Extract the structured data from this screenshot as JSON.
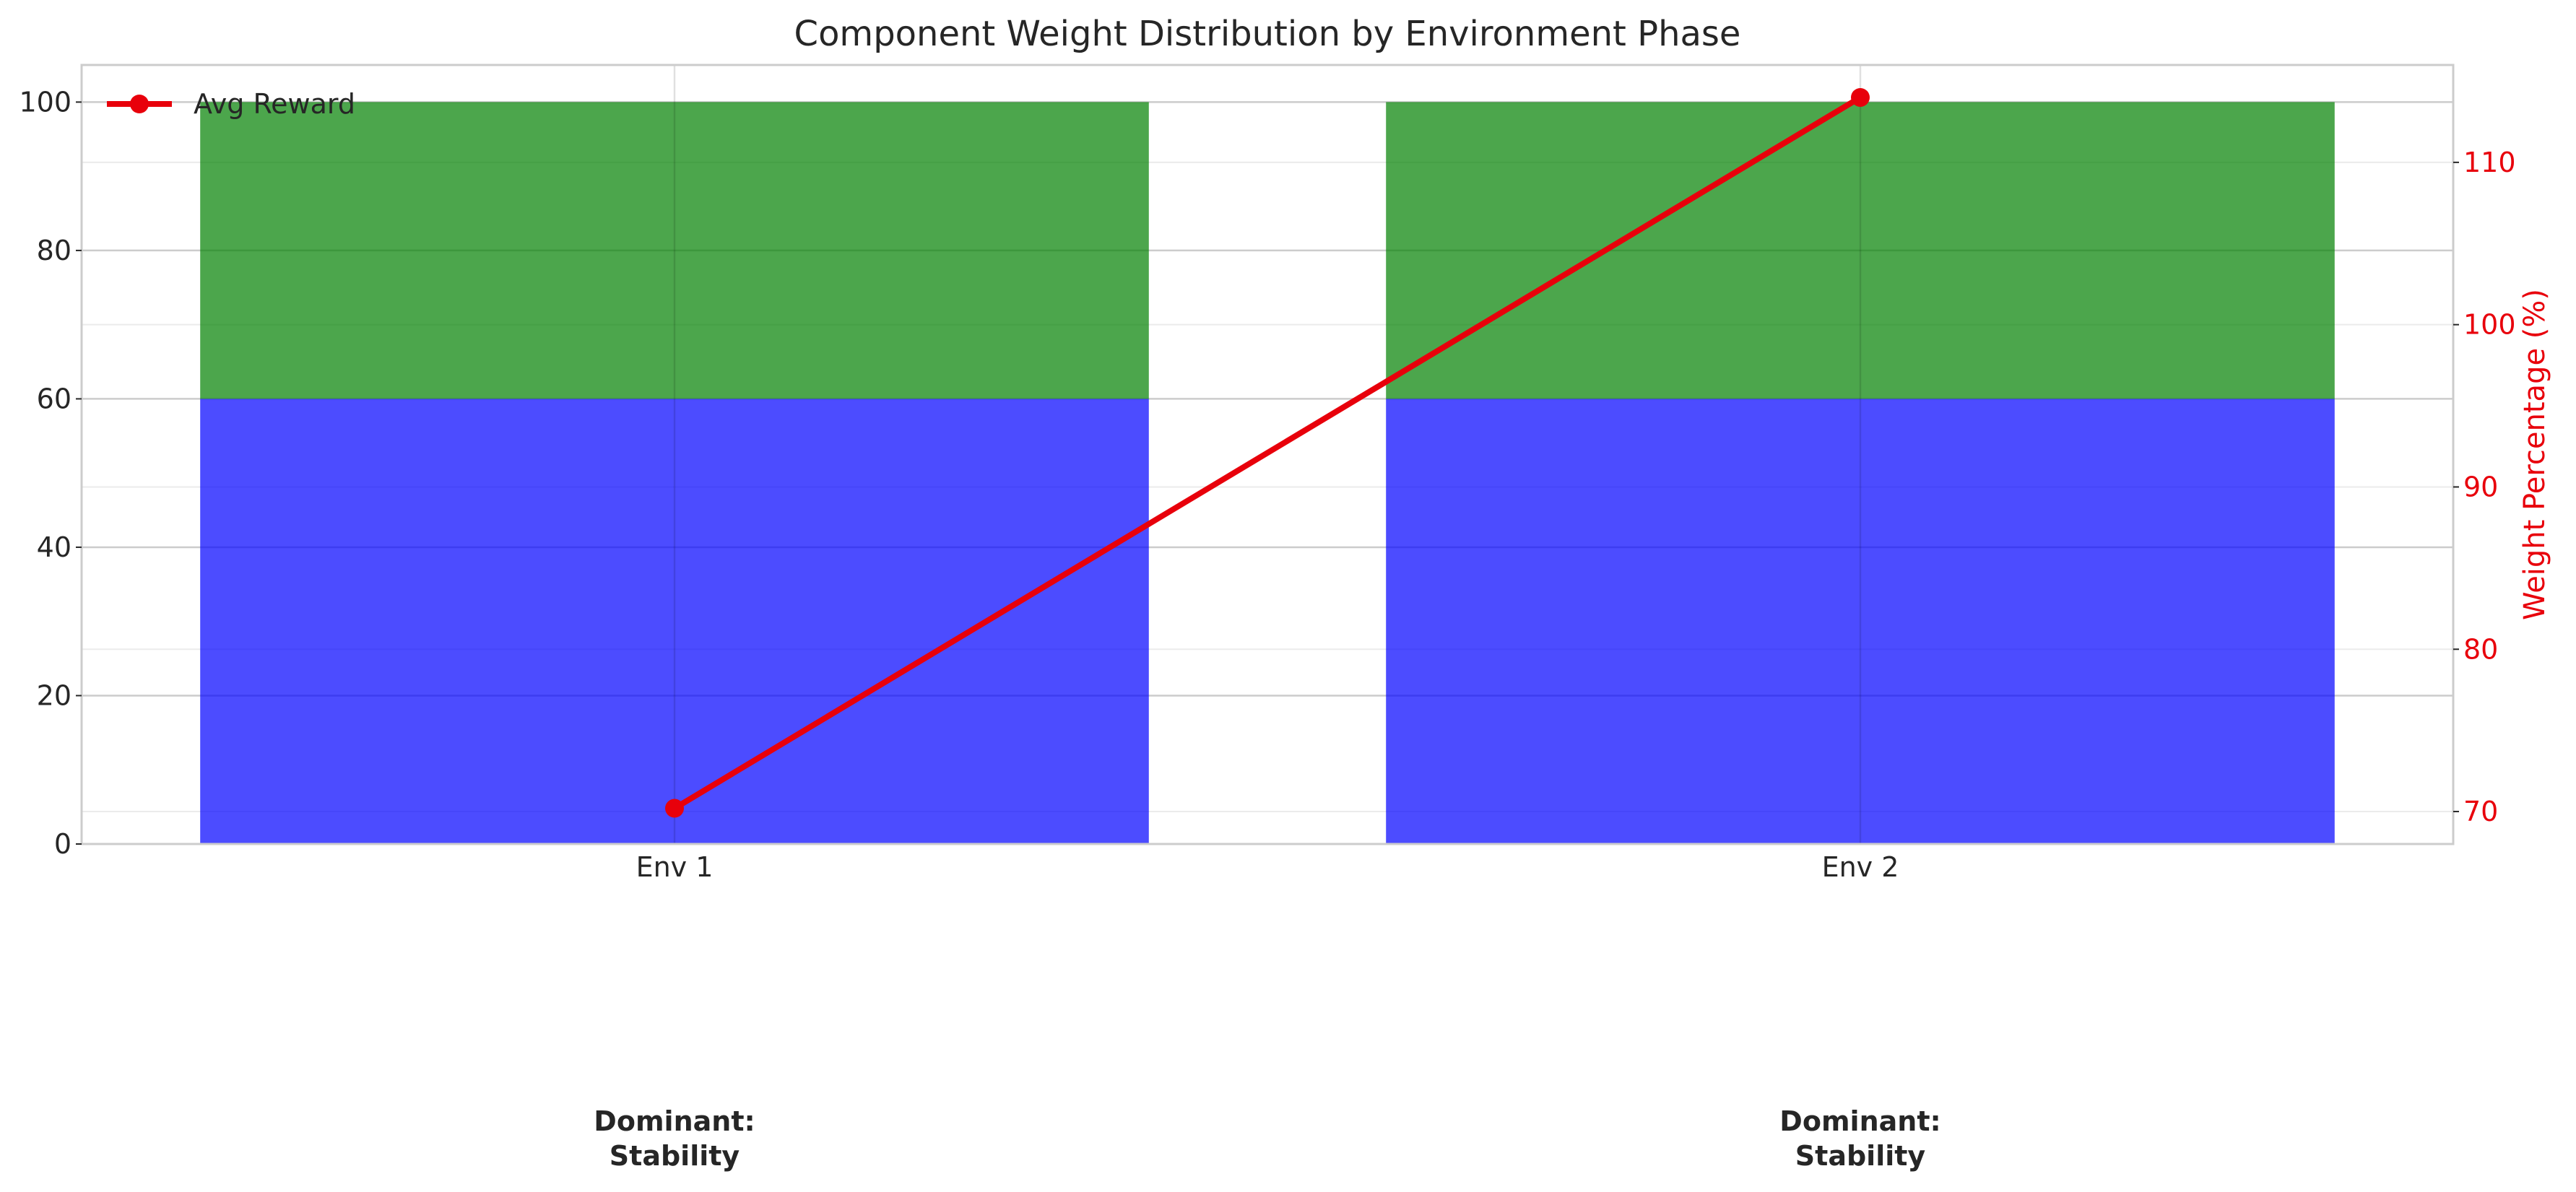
{
  "chart_data": {
    "type": "bar",
    "title": "Component Weight Distribution by Environment Phase",
    "categories": [
      "Env 1",
      "Env 2"
    ],
    "series": [
      {
        "values": [
          60,
          60
        ],
        "color": "#0000ff",
        "stack": true
      },
      {
        "values": [
          40,
          40
        ],
        "color": "#008000",
        "stack": true
      }
    ],
    "ylim": [
      0,
      105
    ],
    "yticks": [
      0,
      20,
      40,
      60,
      80,
      100
    ],
    "line_series": {
      "name": "Avg Reward",
      "values": [
        70.2,
        114.0
      ],
      "color": "#e8000b",
      "axis": "right"
    },
    "y2label": "Weight Percentage (%)",
    "y2lim": [
      68.0,
      116.0
    ],
    "y2ticks": [
      70,
      80,
      90,
      100,
      110
    ],
    "legend": {
      "placement": "top-left",
      "entries": [
        "Avg Reward"
      ]
    },
    "grid": true,
    "annotations": [
      {
        "category": "Env 1",
        "lines": [
          "Dominant:",
          "Stability"
        ]
      },
      {
        "category": "Env 2",
        "lines": [
          "Dominant:",
          "Stability"
        ]
      }
    ]
  }
}
